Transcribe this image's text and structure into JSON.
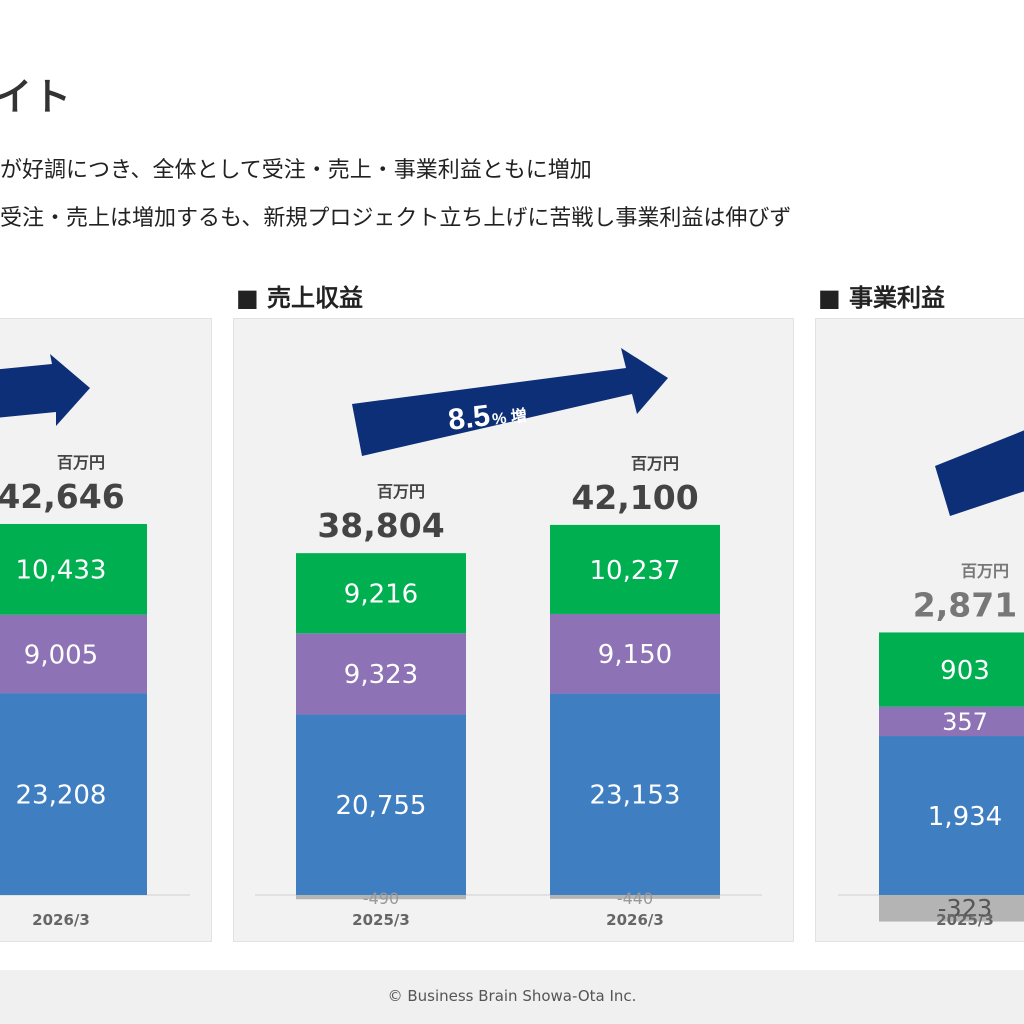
{
  "header": {
    "title": "イト",
    "bullets": [
      "が好調につき、全体として受注・売上・事業利益ともに増加",
      "受注・売上は増加するも、新規プロジェクト立ち上げに苦戦し事業利益は伸びず"
    ]
  },
  "unit_label": "百万円",
  "colors": {
    "green": "#00b050",
    "purple": "#8e72b6",
    "blue": "#3f7ec1",
    "gray": "#b4b4b4",
    "arrow": "#0d2f78"
  },
  "sections": [
    {
      "title": "",
      "growth_value": "",
      "growth_suffix": ""
    },
    {
      "title": "■ 売上収益",
      "growth_value": "8.5",
      "growth_suffix": "% 増"
    },
    {
      "title": "■ 事業利益",
      "growth_value": "",
      "growth_suffix": ""
    }
  ],
  "chart_data": [
    {
      "type": "bar",
      "stacked": true,
      "categories": [
        "2026/3"
      ],
      "totals": [
        "42,646"
      ],
      "series": [
        {
          "color": "green",
          "values": [
            10433
          ],
          "labels": [
            "10,433"
          ]
        },
        {
          "color": "purple",
          "values": [
            9005
          ],
          "labels": [
            "9,005"
          ]
        },
        {
          "color": "blue",
          "values": [
            23208
          ],
          "labels": [
            "23,208"
          ]
        }
      ]
    },
    {
      "type": "bar",
      "stacked": true,
      "title": "売上収益",
      "categories": [
        "2025/3",
        "2026/3"
      ],
      "totals": [
        "38,804",
        "42,100"
      ],
      "series": [
        {
          "color": "green",
          "values": [
            9216,
            10237
          ],
          "labels": [
            "9,216",
            "10,237"
          ]
        },
        {
          "color": "purple",
          "values": [
            9323,
            9150
          ],
          "labels": [
            "9,323",
            "9,150"
          ]
        },
        {
          "color": "blue",
          "values": [
            20755,
            23153
          ],
          "labels": [
            "20,755",
            "23,153"
          ]
        },
        {
          "color": "gray",
          "values": [
            -490,
            -440
          ],
          "labels": [
            "-490",
            "-440"
          ]
        }
      ]
    },
    {
      "type": "bar",
      "stacked": true,
      "title": "事業利益",
      "categories": [
        "2025/3"
      ],
      "totals": [
        "2,871"
      ],
      "series": [
        {
          "color": "green",
          "values": [
            903
          ],
          "labels": [
            "903"
          ]
        },
        {
          "color": "purple",
          "values": [
            357
          ],
          "labels": [
            "357"
          ]
        },
        {
          "color": "blue",
          "values": [
            1934
          ],
          "labels": [
            "1,934"
          ]
        },
        {
          "color": "gray",
          "values": [
            -323
          ],
          "labels": [
            "-323"
          ]
        }
      ]
    }
  ],
  "footer": {
    "copyright": "© Business Brain Showa-Ota Inc."
  }
}
